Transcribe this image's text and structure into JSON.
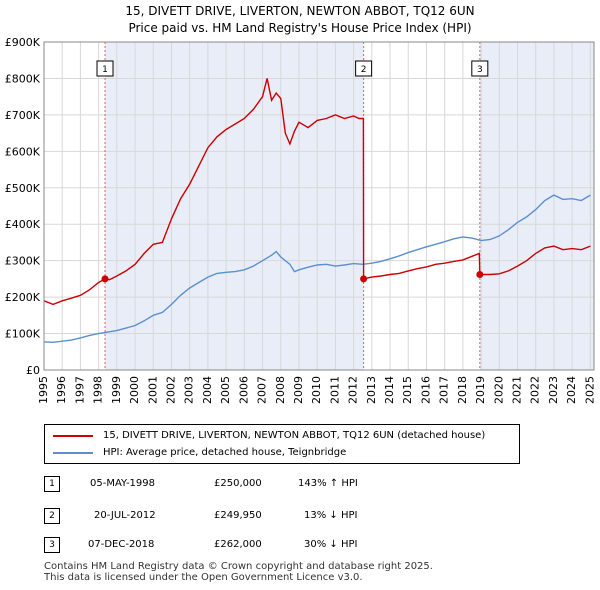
{
  "chart_data": {
    "type": "line",
    "title": "15, DIVETT DRIVE, LIVERTON, NEWTON ABBOT, TQ12 6UN",
    "subtitle": "Price paid vs. HM Land Registry's House Price Index (HPI)",
    "xlabel": "",
    "ylabel": "",
    "xlim": [
      1995,
      2025.2
    ],
    "ylim": [
      0,
      900000
    ],
    "y_ticks": [
      {
        "value": 0,
        "label": "£0"
      },
      {
        "value": 100000,
        "label": "£100K"
      },
      {
        "value": 200000,
        "label": "£200K"
      },
      {
        "value": 300000,
        "label": "£300K"
      },
      {
        "value": 400000,
        "label": "£400K"
      },
      {
        "value": 500000,
        "label": "£500K"
      },
      {
        "value": 600000,
        "label": "£600K"
      },
      {
        "value": 700000,
        "label": "£700K"
      },
      {
        "value": 800000,
        "label": "£800K"
      },
      {
        "value": 900000,
        "label": "£900K"
      }
    ],
    "x_ticks": [
      "1995",
      "1996",
      "1997",
      "1998",
      "1999",
      "2000",
      "2001",
      "2002",
      "2003",
      "2004",
      "2005",
      "2006",
      "2007",
      "2008",
      "2009",
      "2010",
      "2011",
      "2012",
      "2013",
      "2014",
      "2015",
      "2016",
      "2017",
      "2018",
      "2019",
      "2020",
      "2021",
      "2022",
      "2023",
      "2024",
      "2025"
    ],
    "series": [
      {
        "name": "15, DIVETT DRIVE, LIVERTON, NEWTON ABBOT, TQ12 6UN (detached house)",
        "color": "#cc0000",
        "x": [
          1995.0,
          1995.5,
          1996.0,
          1996.5,
          1997.0,
          1997.5,
          1998.0,
          1998.35,
          1998.6,
          1999.0,
          1999.5,
          2000.0,
          2000.5,
          2001.0,
          2001.5,
          2002.0,
          2002.5,
          2003.0,
          2003.5,
          2004.0,
          2004.5,
          2005.0,
          2005.5,
          2006.0,
          2006.5,
          2007.0,
          2007.25,
          2007.5,
          2007.75,
          2008.0,
          2008.25,
          2008.5,
          2008.75,
          2009.0,
          2009.5,
          2010.0,
          2010.5,
          2011.0,
          2011.5,
          2012.0,
          2012.3,
          2012.54,
          2012.55,
          2013.0,
          2013.5,
          2014.0,
          2014.5,
          2015.0,
          2015.5,
          2016.0,
          2016.5,
          2017.0,
          2017.5,
          2018.0,
          2018.5,
          2018.9,
          2018.93,
          2019.5,
          2020.0,
          2020.5,
          2021.0,
          2021.5,
          2022.0,
          2022.5,
          2023.0,
          2023.5,
          2024.0,
          2024.5,
          2025.0
        ],
        "y": [
          190000,
          180000,
          190000,
          197000,
          205000,
          220000,
          240000,
          250000,
          248000,
          258000,
          272000,
          290000,
          320000,
          345000,
          350000,
          415000,
          470000,
          510000,
          560000,
          610000,
          640000,
          660000,
          675000,
          690000,
          715000,
          750000,
          800000,
          740000,
          760000,
          745000,
          650000,
          620000,
          655000,
          680000,
          665000,
          685000,
          690000,
          700000,
          690000,
          697000,
          690000,
          690000,
          249950,
          255000,
          258000,
          262000,
          265000,
          272000,
          278000,
          283000,
          290000,
          293000,
          298000,
          302000,
          312000,
          320000,
          262000,
          262000,
          264000,
          272000,
          285000,
          300000,
          320000,
          335000,
          340000,
          330000,
          333000,
          330000,
          340000
        ]
      },
      {
        "name": "HPI: Average price, detached house, Teignbridge",
        "color": "#5b8fd0",
        "x": [
          1995.0,
          1995.5,
          1996.0,
          1996.5,
          1997.0,
          1997.5,
          1998.0,
          1998.5,
          1999.0,
          1999.5,
          2000.0,
          2000.5,
          2001.0,
          2001.5,
          2002.0,
          2002.5,
          2003.0,
          2003.5,
          2004.0,
          2004.5,
          2005.0,
          2005.5,
          2006.0,
          2006.5,
          2007.0,
          2007.5,
          2007.75,
          2008.0,
          2008.5,
          2008.75,
          2009.0,
          2009.5,
          2010.0,
          2010.5,
          2011.0,
          2011.5,
          2012.0,
          2012.5,
          2013.0,
          2013.5,
          2014.0,
          2014.5,
          2015.0,
          2015.5,
          2016.0,
          2016.5,
          2017.0,
          2017.5,
          2018.0,
          2018.5,
          2019.0,
          2019.5,
          2020.0,
          2020.5,
          2021.0,
          2021.5,
          2022.0,
          2022.5,
          2023.0,
          2023.5,
          2024.0,
          2024.5,
          2025.0
        ],
        "y": [
          77000,
          76000,
          79000,
          82000,
          88000,
          95000,
          100000,
          104000,
          108000,
          115000,
          122000,
          135000,
          150000,
          158000,
          180000,
          205000,
          225000,
          240000,
          255000,
          265000,
          268000,
          270000,
          275000,
          285000,
          300000,
          315000,
          325000,
          310000,
          290000,
          270000,
          275000,
          282000,
          288000,
          290000,
          285000,
          288000,
          292000,
          290000,
          293000,
          298000,
          305000,
          313000,
          322000,
          330000,
          338000,
          345000,
          352000,
          360000,
          365000,
          362000,
          355000,
          358000,
          368000,
          385000,
          405000,
          420000,
          440000,
          465000,
          480000,
          468000,
          470000,
          465000,
          480000
        ]
      }
    ],
    "sales": [
      {
        "label": "1",
        "x": 1998.35,
        "y": 250000
      },
      {
        "label": "2",
        "x": 2012.55,
        "y": 249950
      },
      {
        "label": "3",
        "x": 2018.93,
        "y": 262000
      }
    ]
  },
  "legend": {
    "items": [
      {
        "label": "15, DIVETT DRIVE, LIVERTON, NEWTON ABBOT, TQ12 6UN (detached house)",
        "color": "#cc0000"
      },
      {
        "label": "HPI: Average price, detached house, Teignbridge",
        "color": "#5b8fd0"
      }
    ]
  },
  "sales_table": [
    {
      "num": "1",
      "date": "05-MAY-1998",
      "price": "£250,000",
      "hpi": "143% ↑ HPI"
    },
    {
      "num": "2",
      "date": "20-JUL-2012",
      "price": "£249,950",
      "hpi": "13% ↓ HPI"
    },
    {
      "num": "3",
      "date": "07-DEC-2018",
      "price": "£262,000",
      "hpi": "30% ↓ HPI"
    }
  ],
  "footer": {
    "line1": "Contains HM Land Registry data © Crown copyright and database right 2025.",
    "line2": "This data is licensed under the Open Government Licence v3.0."
  }
}
